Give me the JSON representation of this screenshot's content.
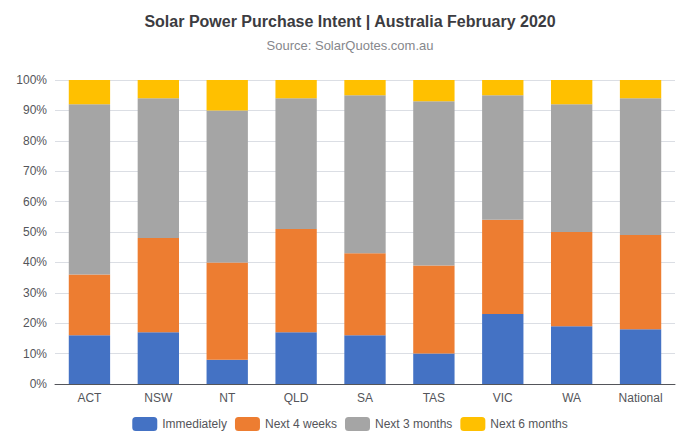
{
  "chart_data": {
    "type": "bar",
    "title": "Solar Power Purchase Intent | Australia February 2020",
    "subtitle": "Source: SolarQuotes.com.au",
    "categories": [
      "ACT",
      "NSW",
      "NT",
      "QLD",
      "SA",
      "TAS",
      "VIC",
      "WA",
      "National"
    ],
    "series": [
      {
        "name": "Immediately",
        "color": "#4472C4",
        "values": [
          16,
          17,
          8,
          17,
          16,
          10,
          23,
          19,
          18
        ]
      },
      {
        "name": "Next 4 weeks",
        "color": "#ED7D31",
        "values": [
          20,
          31,
          32,
          34,
          27,
          29,
          31,
          31,
          31
        ]
      },
      {
        "name": "Next 3 months",
        "color": "#A5A5A5",
        "values": [
          56,
          46,
          50,
          43,
          52,
          54,
          41,
          42,
          45
        ]
      },
      {
        "name": "Next 6 months",
        "color": "#FFC000",
        "values": [
          8,
          6,
          10,
          6,
          5,
          7,
          5,
          8,
          6
        ]
      }
    ],
    "stacked": true,
    "ylim": [
      0,
      100
    ],
    "yticks": [
      {
        "value": 0,
        "label": "0%"
      },
      {
        "value": 10,
        "label": "10%"
      },
      {
        "value": 20,
        "label": "20%"
      },
      {
        "value": 30,
        "label": "30%"
      },
      {
        "value": 40,
        "label": "40%"
      },
      {
        "value": 50,
        "label": "50%"
      },
      {
        "value": 60,
        "label": "60%"
      },
      {
        "value": 70,
        "label": "70%"
      },
      {
        "value": 80,
        "label": "80%"
      },
      {
        "value": 90,
        "label": "90%"
      },
      {
        "value": 100,
        "label": "100%"
      }
    ],
    "grid": true,
    "legend": "bottom"
  }
}
